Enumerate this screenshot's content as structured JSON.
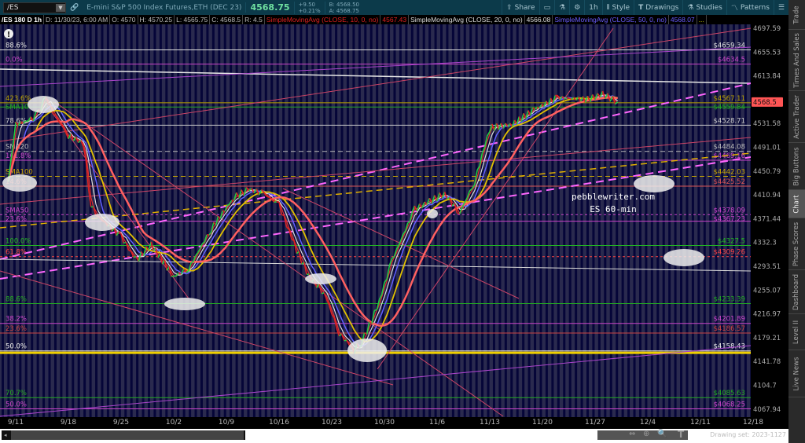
{
  "toolbar": {
    "symbol": "/ES",
    "description": "E-mini S&P 500 Index Futures,ETH (DEC 23)",
    "last": "4568.75",
    "change": "+9.50",
    "change_pct": "+0.21%",
    "bid": "B: 4568.50",
    "ask": "A: 4568.75",
    "share": "Share",
    "timeframe": "1h",
    "style": "Style",
    "drawings": "Drawings",
    "studies": "Studies",
    "patterns": "Patterns"
  },
  "infobar": {
    "chart_spec": "/ES 180 D 1h",
    "date": "D: 11/30/23, 6:00 AM",
    "open": "O: 4570",
    "high": "H: 4570.25",
    "low": "L: 4565.75",
    "close": "C: 4568.5",
    "range": "R: 4.5",
    "sma10_label": "SimpleMovingAvg (CLOSE, 10, 0, no)",
    "sma10_value": "4567.43",
    "sma20_label": "SimpleMovingAvg (CLOSE, 20, 0, no)",
    "sma20_value": "4566.08",
    "sma50_label": "SimpleMovingAvg (CLOSE, 50, 0, no)",
    "sma50_value": "4568.07",
    "more": "..."
  },
  "side_tabs": [
    "Trade",
    "Times And Sales",
    "Active Trader",
    "Big Buttons",
    "Chart",
    "Phase Scores",
    "Dashboard",
    "Level II",
    "Live News"
  ],
  "selected_tab": "Chart",
  "drawing_set": "Drawing set: 2023-1127",
  "watermark": {
    "line1": "pebblewriter.com",
    "line2": "ES 60-min"
  },
  "chart_data": {
    "type": "line",
    "price_ticks": [
      "4697.59",
      "4655.53",
      "4613.84",
      "4572.5",
      "4531.58",
      "4491.01",
      "4450.79",
      "4410.94",
      "4371.44",
      "4332.3",
      "4293.51",
      "4255.07",
      "4216.97",
      "4179.21",
      "4141.78",
      "4104.7",
      "4067.94"
    ],
    "current_price": "4568.5",
    "date_ticks": [
      "9/11",
      "9/18",
      "9/25",
      "10/2",
      "10/9",
      "10/16",
      "10/23",
      "10/30",
      "11/6",
      "11/13",
      "11/20",
      "11/27",
      "12/4",
      "12/11",
      "12/18"
    ],
    "price_path": [
      [
        "9/10",
        4433
      ],
      [
        "9/11",
        4530
      ],
      [
        "9/13",
        4537
      ],
      [
        "9/14",
        4550
      ],
      [
        "9/15",
        4576
      ],
      [
        "9/16",
        4550
      ],
      [
        "9/18",
        4511
      ],
      [
        "9/20",
        4498
      ],
      [
        "9/21",
        4394
      ],
      [
        "9/22",
        4374
      ],
      [
        "9/25",
        4342
      ],
      [
        "9/27",
        4303
      ],
      [
        "9/29",
        4329
      ],
      [
        "10/2",
        4277
      ],
      [
        "10/4",
        4290
      ],
      [
        "10/7",
        4355
      ],
      [
        "10/10",
        4407
      ],
      [
        "10/12",
        4420
      ],
      [
        "10/14",
        4413
      ],
      [
        "10/16",
        4394
      ],
      [
        "10/18",
        4329
      ],
      [
        "10/20",
        4277
      ],
      [
        "10/22",
        4251
      ],
      [
        "10/24",
        4186
      ],
      [
        "10/26",
        4160
      ],
      [
        "10/27",
        4173
      ],
      [
        "10/29",
        4225
      ],
      [
        "10/31",
        4303
      ],
      [
        "11/3",
        4387
      ],
      [
        "11/5",
        4400
      ],
      [
        "11/7",
        4413
      ],
      [
        "11/9",
        4381
      ],
      [
        "11/11",
        4433
      ],
      [
        "11/13",
        4524
      ],
      [
        "11/16",
        4530
      ],
      [
        "11/19",
        4556
      ],
      [
        "11/22",
        4576
      ],
      [
        "11/26",
        4573
      ],
      [
        "11/28",
        4582
      ],
      [
        "11/30",
        4568.5
      ]
    ],
    "ma_colors": {
      "sma10": "#e03030",
      "sma20": "#dddddd",
      "sma50": "#6060ff",
      "ma_yellow": "#e0c000",
      "ma_salmon": "#ff6060"
    },
    "levels": [
      {
        "price": 4659.34,
        "color": "#e0e0e0",
        "left": "88.6%",
        "right": "$4659.34",
        "style": "solid"
      },
      {
        "price": 4634.5,
        "color": "#cc44cc",
        "left": "0.0%",
        "right": "$4634.5",
        "style": "solid"
      },
      {
        "price": 4567.11,
        "color": "#b8a000",
        "left": "423.6%",
        "right": "$4567.11",
        "style": "solid"
      },
      {
        "price": 4559.84,
        "color": "#22aa22",
        "left": "SMA10",
        "right": "$4559.84",
        "style": "solid"
      },
      {
        "price": 4528.71,
        "color": "#cccccc",
        "left": "78.6%",
        "right": "$4528.71",
        "style": "solid"
      },
      {
        "price": 4484.08,
        "color": "#bbbbbb",
        "left": "SMA20",
        "right": "$4484.08",
        "style": "dash"
      },
      {
        "price": 4469.16,
        "color": "#cc44cc",
        "left": "161.8%",
        "right": "$4469.16",
        "style": "solid"
      },
      {
        "price": 4442.03,
        "color": "#ccaa00",
        "left": "SMA100",
        "right": "$4442.03",
        "style": "dash"
      },
      {
        "price": 4425.52,
        "color": "#dd5555",
        "left": "14.6%",
        "right": "$4425.52",
        "style": "solid"
      },
      {
        "price": 4378.09,
        "color": "#cc44cc",
        "left": "SMA50",
        "right": "$4378.09",
        "style": "dot"
      },
      {
        "price": 4367.23,
        "color": "#cc44cc",
        "left": "23.6%",
        "right": "$4367.23",
        "style": "solid"
      },
      {
        "price": 4327.5,
        "color": "#22bb22",
        "left": "100.0%",
        "right": "$4327.5",
        "style": "solid"
      },
      {
        "price": 4309.26,
        "color": "#ff4444",
        "left": "61.8%",
        "right": "$4309.26",
        "style": "dot"
      },
      {
        "price": 4233.39,
        "color": "#22aa22",
        "left": "88.6%",
        "right": "$4233.39",
        "style": "solid"
      },
      {
        "price": 4201.89,
        "color": "#cc44cc",
        "left": "38.2%",
        "right": "$4201.89",
        "style": "solid"
      },
      {
        "price": 4186.57,
        "color": "#cc4444",
        "left": "23.6%",
        "right": "$4186.57",
        "style": "solid"
      },
      {
        "price": 4158.43,
        "color": "#eeeeee",
        "left": "50.0%",
        "right": "$4158.43",
        "style": "solid"
      },
      {
        "price": 4155.5,
        "color": "#f0d000",
        "left": "",
        "right": "",
        "style": "thick"
      },
      {
        "price": 4085.63,
        "color": "#22aa22",
        "left": "70.7%",
        "right": "$4085.63",
        "style": "solid"
      },
      {
        "price": 4068.25,
        "color": "#cc44cc",
        "left": "50.0%",
        "right": "$4068.25",
        "style": "solid"
      }
    ]
  }
}
